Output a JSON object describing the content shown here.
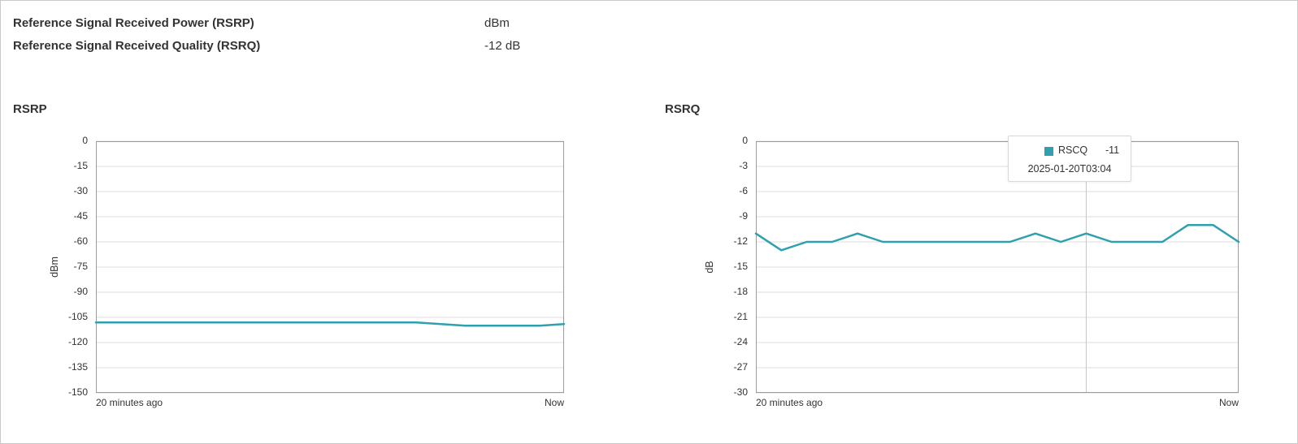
{
  "info": {
    "rows": [
      {
        "label": "Reference Signal Received Power (RSRP)",
        "value": "dBm"
      },
      {
        "label": "Reference Signal Received Quality (RSRQ)",
        "value": "-12 dB"
      }
    ]
  },
  "colors": {
    "line": "#2fa0b0",
    "grid": "#dcdcdc",
    "plot_border": "#9b9b9b",
    "crosshair": "#c4c4c4",
    "tooltip_border": "#d9d9d9",
    "page_border": "#c9c9c9",
    "text": "#333333"
  },
  "chart_data": [
    {
      "type": "line",
      "title": "RSRP",
      "ylabel": "dBm",
      "ylim": [
        -150,
        0
      ],
      "yticks": [
        0,
        -15,
        -30,
        -45,
        -60,
        -75,
        -90,
        -105,
        -120,
        -135,
        -150
      ],
      "xlabels": [
        "20 minutes ago",
        "Now"
      ],
      "grid": true,
      "legend": "none",
      "values": [
        -108,
        -108,
        -108,
        -108,
        -108,
        -108,
        -108,
        -108,
        -108,
        -108,
        -108,
        -108,
        -108,
        -108,
        -109,
        -110,
        -110,
        -110,
        -110,
        -109
      ]
    },
    {
      "type": "line",
      "title": "RSRQ",
      "ylabel": "dB",
      "ylim": [
        -30,
        0
      ],
      "yticks": [
        0,
        -3,
        -6,
        -9,
        -12,
        -15,
        -18,
        -21,
        -24,
        -27,
        -30
      ],
      "xlabels": [
        "20 minutes ago",
        "Now"
      ],
      "grid": true,
      "legend": "none",
      "values": [
        -11,
        -13,
        -12,
        -12,
        -11,
        -12,
        -12,
        -12,
        -12,
        -12,
        -12,
        -11,
        -12,
        -11,
        -12,
        -12,
        -12,
        -10,
        -10,
        -12
      ],
      "hover": {
        "index": 13,
        "series": "RSCQ",
        "value": "-11",
        "timestamp": "2025-01-20T03:04"
      }
    }
  ]
}
